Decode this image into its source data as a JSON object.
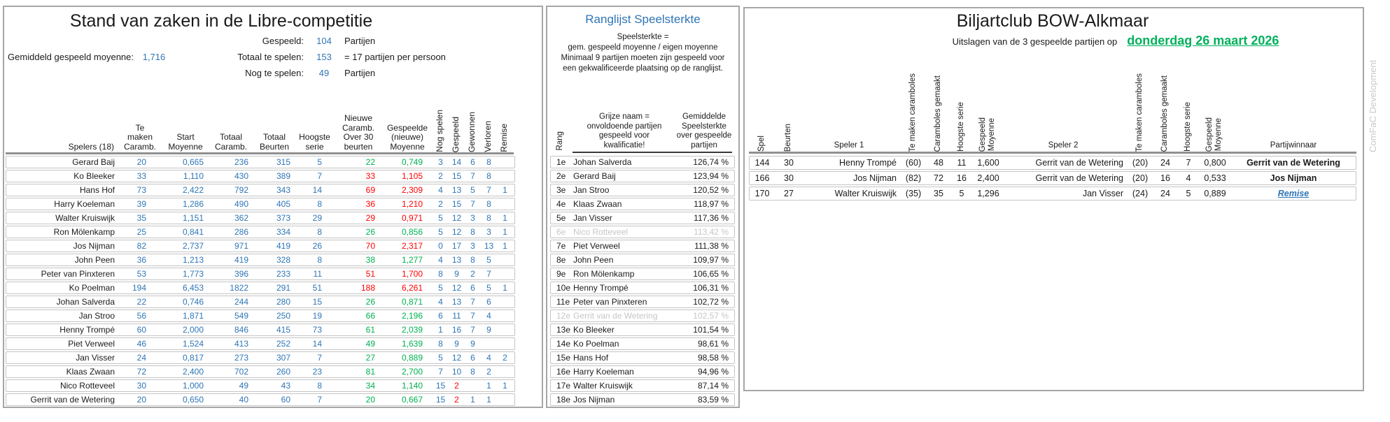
{
  "colors": {
    "accent_blue": "#2E75B6",
    "positive_green": "#00B050",
    "negative_red": "#FF0000",
    "date_link_green": "#00B15C",
    "unqualified_gray": "#C6C6C6"
  },
  "left": {
    "title": "Stand van zaken in de Libre-competitie",
    "stats": {
      "gespeeld_label": "Gespeeld:",
      "gespeeld_value": "104",
      "gespeeld_suffix": "Partijen",
      "moyenne_label": "Gemiddeld gespeeld moyenne:",
      "moyenne_value": "1,716",
      "totaal_label": "Totaal te spelen:",
      "totaal_value": "153",
      "totaal_suffix": "= 17 partijen per persoon",
      "nog_label": "Nog te spelen:",
      "nog_value": "49",
      "nog_suffix": "Partijen"
    },
    "headers": {
      "spelers": "Spelers (18)",
      "tm": "Te\nmaken\nCaramb.",
      "sm": "Start\nMoyenne",
      "tc": "Totaal\nCaramb.",
      "tb": "Totaal\nBeurten",
      "hs": "Hoogste\nserie",
      "nc": "Nieuwe\nCaramb.\nOver 30\nbeurten",
      "gm": "Gespeelde\n(nieuwe)\nMoyenne",
      "ns": "Nog spelen",
      "gp": "Gespeeld",
      "gw": "Gewonnen",
      "vl": "Verloren",
      "rm": "Remise"
    },
    "rows": [
      {
        "name": "Gerard Baij",
        "tm": "20",
        "sm": "0,665",
        "tc": "236",
        "tb": "315",
        "hs": "5",
        "nc": "22",
        "gm": "0,749",
        "ns": "3",
        "gp": "14",
        "gw": "6",
        "vl": "8",
        "rm": "",
        "nc_cls": "green",
        "gp_cls": ""
      },
      {
        "name": "Ko Bleeker",
        "tm": "33",
        "sm": "1,110",
        "tc": "430",
        "tb": "389",
        "hs": "7",
        "nc": "33",
        "gm": "1,105",
        "ns": "2",
        "gp": "15",
        "gw": "7",
        "vl": "8",
        "rm": "",
        "nc_cls": "red",
        "gp_cls": ""
      },
      {
        "name": "Hans Hof",
        "tm": "73",
        "sm": "2,422",
        "tc": "792",
        "tb": "343",
        "hs": "14",
        "nc": "69",
        "gm": "2,309",
        "ns": "4",
        "gp": "13",
        "gw": "5",
        "vl": "7",
        "rm": "1",
        "nc_cls": "red",
        "gp_cls": ""
      },
      {
        "name": "Harry Koeleman",
        "tm": "39",
        "sm": "1,286",
        "tc": "490",
        "tb": "405",
        "hs": "8",
        "nc": "36",
        "gm": "1,210",
        "ns": "2",
        "gp": "15",
        "gw": "7",
        "vl": "8",
        "rm": "",
        "nc_cls": "red",
        "gp_cls": ""
      },
      {
        "name": "Walter Kruiswijk",
        "tm": "35",
        "sm": "1,151",
        "tc": "362",
        "tb": "373",
        "hs": "29",
        "nc": "29",
        "gm": "0,971",
        "ns": "5",
        "gp": "12",
        "gw": "3",
        "vl": "8",
        "rm": "1",
        "nc_cls": "red",
        "gp_cls": ""
      },
      {
        "name": "Ron Mölenkamp",
        "tm": "25",
        "sm": "0,841",
        "tc": "286",
        "tb": "334",
        "hs": "8",
        "nc": "26",
        "gm": "0,856",
        "ns": "5",
        "gp": "12",
        "gw": "8",
        "vl": "3",
        "rm": "1",
        "nc_cls": "green",
        "gp_cls": ""
      },
      {
        "name": "Jos Nijman",
        "tm": "82",
        "sm": "2,737",
        "tc": "971",
        "tb": "419",
        "hs": "26",
        "nc": "70",
        "gm": "2,317",
        "ns": "0",
        "gp": "17",
        "gw": "3",
        "vl": "13",
        "rm": "1",
        "nc_cls": "red",
        "gp_cls": ""
      },
      {
        "name": "John Peen",
        "tm": "36",
        "sm": "1,213",
        "tc": "419",
        "tb": "328",
        "hs": "8",
        "nc": "38",
        "gm": "1,277",
        "ns": "4",
        "gp": "13",
        "gw": "8",
        "vl": "5",
        "rm": "",
        "nc_cls": "green",
        "gp_cls": ""
      },
      {
        "name": "Peter van Pinxteren",
        "tm": "53",
        "sm": "1,773",
        "tc": "396",
        "tb": "233",
        "hs": "11",
        "nc": "51",
        "gm": "1,700",
        "ns": "8",
        "gp": "9",
        "gw": "2",
        "vl": "7",
        "rm": "",
        "nc_cls": "red",
        "gp_cls": ""
      },
      {
        "name": "Ko Poelman",
        "tm": "194",
        "sm": "6,453",
        "tc": "1822",
        "tb": "291",
        "hs": "51",
        "nc": "188",
        "gm": "6,261",
        "ns": "5",
        "gp": "12",
        "gw": "6",
        "vl": "5",
        "rm": "1",
        "nc_cls": "red",
        "gp_cls": ""
      },
      {
        "name": "Johan Salverda",
        "tm": "22",
        "sm": "0,746",
        "tc": "244",
        "tb": "280",
        "hs": "15",
        "nc": "26",
        "gm": "0,871",
        "ns": "4",
        "gp": "13",
        "gw": "7",
        "vl": "6",
        "rm": "",
        "nc_cls": "green",
        "gp_cls": ""
      },
      {
        "name": "Jan Stroo",
        "tm": "56",
        "sm": "1,871",
        "tc": "549",
        "tb": "250",
        "hs": "19",
        "nc": "66",
        "gm": "2,196",
        "ns": "6",
        "gp": "11",
        "gw": "7",
        "vl": "4",
        "rm": "",
        "nc_cls": "green",
        "gp_cls": ""
      },
      {
        "name": "Henny Trompé",
        "tm": "60",
        "sm": "2,000",
        "tc": "846",
        "tb": "415",
        "hs": "73",
        "nc": "61",
        "gm": "2,039",
        "ns": "1",
        "gp": "16",
        "gw": "7",
        "vl": "9",
        "rm": "",
        "nc_cls": "green",
        "gp_cls": ""
      },
      {
        "name": "Piet Verweel",
        "tm": "46",
        "sm": "1,524",
        "tc": "413",
        "tb": "252",
        "hs": "14",
        "nc": "49",
        "gm": "1,639",
        "ns": "8",
        "gp": "9",
        "gw": "9",
        "vl": "",
        "rm": "",
        "nc_cls": "green",
        "gp_cls": ""
      },
      {
        "name": "Jan Visser",
        "tm": "24",
        "sm": "0,817",
        "tc": "273",
        "tb": "307",
        "hs": "7",
        "nc": "27",
        "gm": "0,889",
        "ns": "5",
        "gp": "12",
        "gw": "6",
        "vl": "4",
        "rm": "2",
        "nc_cls": "green",
        "gp_cls": ""
      },
      {
        "name": "Klaas Zwaan",
        "tm": "72",
        "sm": "2,400",
        "tc": "702",
        "tb": "260",
        "hs": "23",
        "nc": "81",
        "gm": "2,700",
        "ns": "7",
        "gp": "10",
        "gw": "8",
        "vl": "2",
        "rm": "",
        "nc_cls": "green",
        "gp_cls": ""
      },
      {
        "name": "Nico Rotteveel",
        "tm": "30",
        "sm": "1,000",
        "tc": "49",
        "tb": "43",
        "hs": "8",
        "nc": "34",
        "gm": "1,140",
        "ns": "15",
        "gp": "2",
        "gw": "",
        "vl": "1",
        "rm": "1",
        "nc_cls": "green",
        "gp_cls": "red"
      },
      {
        "name": "Gerrit van de Wetering",
        "tm": "20",
        "sm": "0,650",
        "tc": "40",
        "tb": "60",
        "hs": "7",
        "nc": "20",
        "gm": "0,667",
        "ns": "15",
        "gp": "2",
        "gw": "1",
        "vl": "1",
        "rm": "",
        "nc_cls": "green",
        "gp_cls": "red"
      }
    ]
  },
  "middle": {
    "title": "Ranglijst Speelsterkte",
    "desc": "Speelsterkte =\ngem. gespeeld moyenne / eigen moyenne\nMinimaal 9 partijen moeten zijn gespeeld voor\neen gekwalificeerde plaatsing op de ranglijst.",
    "headers": {
      "rang": "Rang",
      "name": "Grijze naam =\nonvoldoende partijen\ngespeeld voor\nkwalificatie!",
      "pct": "Gemiddelde\nSpeelsterkte\nover gespeelde\npartijen"
    },
    "rows": [
      {
        "rank": "1e",
        "name": "Johan Salverda",
        "pct": "126,74 %",
        "cls": ""
      },
      {
        "rank": "2e",
        "name": "Gerard Baij",
        "pct": "123,94 %",
        "cls": ""
      },
      {
        "rank": "3e",
        "name": "Jan Stroo",
        "pct": "120,52 %",
        "cls": ""
      },
      {
        "rank": "4e",
        "name": "Klaas Zwaan",
        "pct": "118,97 %",
        "cls": ""
      },
      {
        "rank": "5e",
        "name": "Jan Visser",
        "pct": "117,36 %",
        "cls": ""
      },
      {
        "rank": "6e",
        "name": "Nico Rotteveel",
        "pct": "113,42 %",
        "cls": "gray"
      },
      {
        "rank": "7e",
        "name": "Piet Verweel",
        "pct": "111,38 %",
        "cls": ""
      },
      {
        "rank": "8e",
        "name": "John Peen",
        "pct": "109,97 %",
        "cls": ""
      },
      {
        "rank": "9e",
        "name": "Ron Mölenkamp",
        "pct": "106,65 %",
        "cls": ""
      },
      {
        "rank": "10e",
        "name": "Henny Trompé",
        "pct": "106,31 %",
        "cls": ""
      },
      {
        "rank": "11e",
        "name": "Peter van Pinxteren",
        "pct": "102,72 %",
        "cls": ""
      },
      {
        "rank": "12e",
        "name": "Gerrit van de Wetering",
        "pct": "102,57 %",
        "cls": "gray"
      },
      {
        "rank": "13e",
        "name": "Ko Bleeker",
        "pct": "101,54 %",
        "cls": ""
      },
      {
        "rank": "14e",
        "name": "Ko Poelman",
        "pct": "98,61 %",
        "cls": ""
      },
      {
        "rank": "15e",
        "name": "Hans Hof",
        "pct": "98,58 %",
        "cls": ""
      },
      {
        "rank": "16e",
        "name": "Harry Koeleman",
        "pct": "94,96 %",
        "cls": ""
      },
      {
        "rank": "17e",
        "name": "Walter Kruiswijk",
        "pct": "87,14 %",
        "cls": ""
      },
      {
        "rank": "18e",
        "name": "Jos Nijman",
        "pct": "83,59 %",
        "cls": ""
      }
    ]
  },
  "right": {
    "title": "Biljartclub BOW-Alkmaar",
    "subtitle": "Uitslagen van de 3 gespeelde partijen op",
    "date": "donderdag 26 maart 2026",
    "headers": {
      "spel": "Spel",
      "beurten": "Beurten",
      "speler1": "Speler 1",
      "tm": "Te  maken caramboles",
      "cg": "Caramboles gemaakt",
      "hs": "Hoogste serie",
      "gm": "Gespeeld\nMoyenne",
      "speler2": "Speler 2",
      "winnaar": "Partijwinnaar"
    },
    "rows": [
      {
        "spel": "144",
        "beurten": "30",
        "p1": "Henny Trompé",
        "p1_tm": "(60)",
        "p1_cg": "48",
        "p1_hs": "11",
        "p1_gm": "1,600",
        "p2": "Gerrit van de Wetering",
        "p2_tm": "(20)",
        "p2_cg": "24",
        "p2_hs": "7",
        "p2_gm": "0,800",
        "winner": "Gerrit van de Wetering",
        "win_cls": ""
      },
      {
        "spel": "166",
        "beurten": "30",
        "p1": "Jos Nijman",
        "p1_tm": "(82)",
        "p1_cg": "72",
        "p1_hs": "16",
        "p1_gm": "2,400",
        "p2": "Gerrit van de Wetering",
        "p2_tm": "(20)",
        "p2_cg": "16",
        "p2_hs": "4",
        "p2_gm": "0,533",
        "winner": "Jos Nijman",
        "win_cls": ""
      },
      {
        "spel": "170",
        "beurten": "27",
        "p1": "Walter Kruiswijk",
        "p1_tm": "(35)",
        "p1_cg": "35",
        "p1_hs": "5",
        "p1_gm": "1,296",
        "p2": "Jan Visser",
        "p2_tm": "(24)",
        "p2_cg": "24",
        "p2_hs": "5",
        "p2_gm": "0,889",
        "winner": "Remise",
        "win_cls": "remise"
      }
    ]
  },
  "watermark": "ComFaC Development"
}
